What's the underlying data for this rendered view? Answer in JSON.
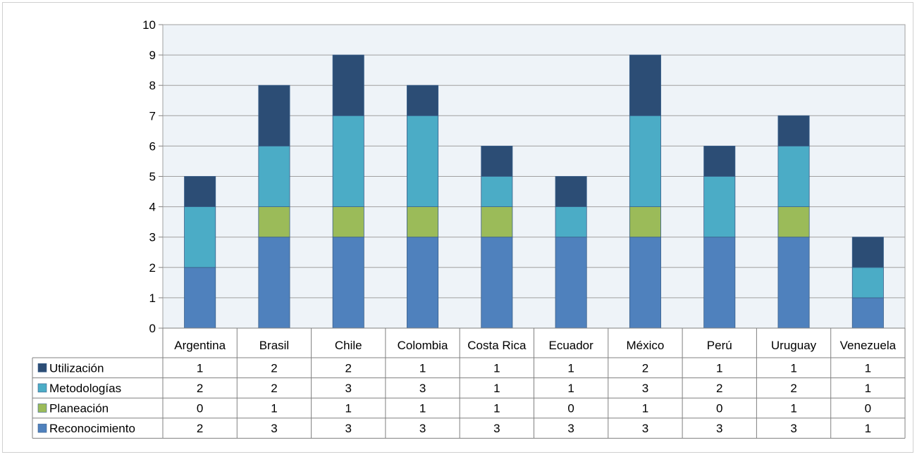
{
  "chart_data": {
    "type": "bar",
    "stacked": true,
    "title": "",
    "xlabel": "",
    "ylabel": "",
    "ylim": [
      0,
      10
    ],
    "yticks": [
      0,
      1,
      2,
      3,
      4,
      5,
      6,
      7,
      8,
      9,
      10
    ],
    "grid": true,
    "legend": "data-table-left",
    "categories": [
      "Argentina",
      "Brasil",
      "Chile",
      "Colombia",
      "Costa Rica",
      "Ecuador",
      "México",
      "Perú",
      "Uruguay",
      "Venezuela"
    ],
    "series": [
      {
        "name": "Reconocimiento",
        "color": "#4f81bd",
        "values": [
          2,
          3,
          3,
          3,
          3,
          3,
          3,
          3,
          3,
          1
        ]
      },
      {
        "name": "Planeación",
        "color": "#9bbb59",
        "values": [
          0,
          1,
          1,
          1,
          1,
          0,
          1,
          0,
          1,
          0
        ]
      },
      {
        "name": "Metodologías",
        "color": "#4bacc6",
        "values": [
          2,
          2,
          3,
          3,
          1,
          1,
          3,
          2,
          2,
          1
        ]
      },
      {
        "name": "Utilización",
        "color": "#2c4d75",
        "values": [
          1,
          2,
          2,
          1,
          1,
          1,
          2,
          1,
          1,
          1
        ]
      }
    ],
    "table_row_order": [
      "Utilización",
      "Metodologías",
      "Planeación",
      "Reconocimiento"
    ],
    "plot_background": "#eef3f8"
  }
}
